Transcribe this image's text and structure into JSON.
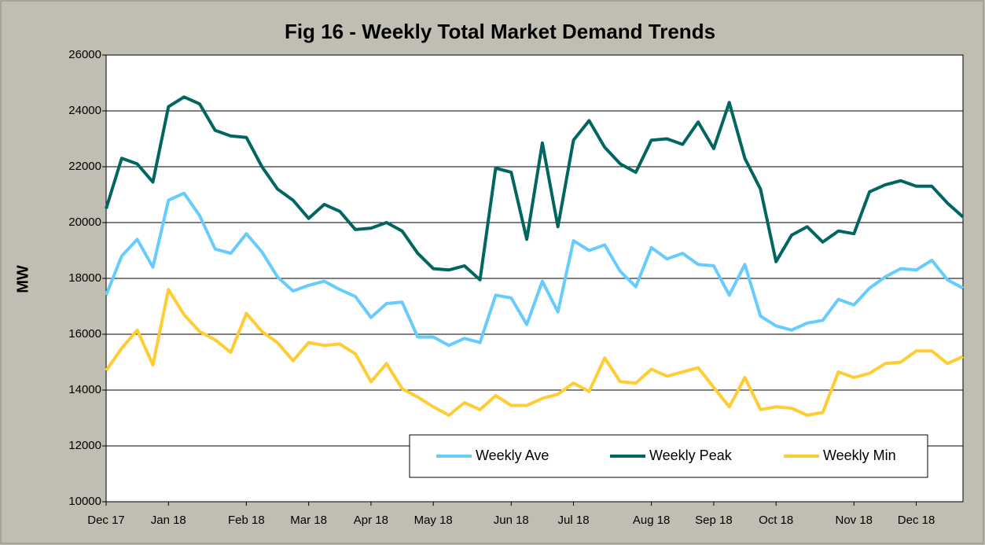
{
  "chart_data": {
    "type": "line",
    "title": "Fig 16 - Weekly Total Market Demand Trends",
    "ylabel": "MW",
    "categories": [
      "Dec 17",
      null,
      null,
      null,
      "Jan 18",
      null,
      null,
      null,
      null,
      "Feb 18",
      null,
      null,
      null,
      "Mar 18",
      null,
      null,
      null,
      "Apr 18",
      null,
      null,
      null,
      "May 18",
      null,
      null,
      null,
      null,
      "Jun 18",
      null,
      null,
      null,
      "Jul 18",
      null,
      null,
      null,
      null,
      "Aug 18",
      null,
      null,
      null,
      "Sep 18",
      null,
      null,
      null,
      "Oct 18",
      null,
      null,
      null,
      null,
      "Nov 18",
      null,
      null,
      null,
      "Dec 18",
      null,
      null,
      null
    ],
    "series": [
      {
        "name": "Weekly Ave",
        "color": "#66ccff",
        "values": [
          17400,
          18800,
          19400,
          18400,
          20800,
          21050,
          20250,
          19050,
          18900,
          19600,
          18950,
          18050,
          17550,
          17750,
          17900,
          17600,
          17350,
          16600,
          17100,
          17150,
          15900,
          15900,
          15600,
          15850,
          15700,
          17400,
          17300,
          16350,
          17900,
          16800,
          19350,
          19000,
          19200,
          18250,
          17700,
          19100,
          18700,
          18900,
          18500,
          18450,
          17400,
          18500,
          16650,
          16300,
          16150,
          16400,
          16500,
          17250,
          17050,
          17650,
          18050,
          18350,
          18300,
          18650,
          17950,
          17650
        ]
      },
      {
        "name": "Weekly Peak",
        "color": "#00665f",
        "values": [
          20500,
          22300,
          22100,
          21450,
          24150,
          24500,
          24250,
          23300,
          23100,
          23050,
          22000,
          21200,
          20800,
          20150,
          20650,
          20400,
          19750,
          19800,
          20000,
          19700,
          18900,
          18350,
          18300,
          18450,
          17950,
          21950,
          21800,
          19400,
          22850,
          19850,
          22950,
          23650,
          22700,
          22100,
          21800,
          22950,
          23000,
          22800,
          23600,
          22650,
          24300,
          22300,
          21200,
          18600,
          19550,
          19850,
          19300,
          19700,
          19600,
          21100,
          21350,
          21500,
          21300,
          21300,
          20700,
          20200
        ]
      },
      {
        "name": "Weekly Min",
        "color": "#ffcc33",
        "values": [
          14700,
          15500,
          16150,
          14900,
          17600,
          16700,
          16100,
          15800,
          15350,
          16750,
          16100,
          15700,
          15050,
          15700,
          15600,
          15650,
          15300,
          14300,
          14950,
          14050,
          13750,
          13400,
          13100,
          13550,
          13300,
          13800,
          13450,
          13450,
          13700,
          13850,
          14250,
          13950,
          15150,
          14300,
          14250,
          14750,
          14500,
          14650,
          14800,
          14100,
          13400,
          14450,
          13300,
          13400,
          13350,
          13100,
          13200,
          14650,
          14450,
          14600,
          14950,
          15000,
          15400,
          15400,
          14950,
          15200
        ]
      }
    ],
    "ylim": [
      10000,
      26000
    ],
    "yticks": [
      10000,
      12000,
      14000,
      16000,
      18000,
      20000,
      22000,
      24000,
      26000
    ],
    "grid": true,
    "legend": "lower right"
  }
}
